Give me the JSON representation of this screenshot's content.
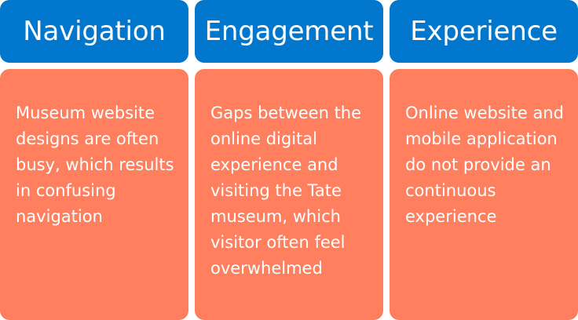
{
  "colors": {
    "header_bg": "#0077CC",
    "body_bg": "#FF7F5F",
    "text": "#FFFFFF"
  },
  "columns": [
    {
      "title": "Navigation",
      "text": "Museum website designs are often busy, which results in confusing navigation"
    },
    {
      "title": "Engagement",
      "text": "Gaps between the online digital experience and visiting the Tate museum, which visitor often feel overwhelmed"
    },
    {
      "title": "Experience",
      "text": "Online website and mobile application do not provide an continuous experience"
    }
  ]
}
